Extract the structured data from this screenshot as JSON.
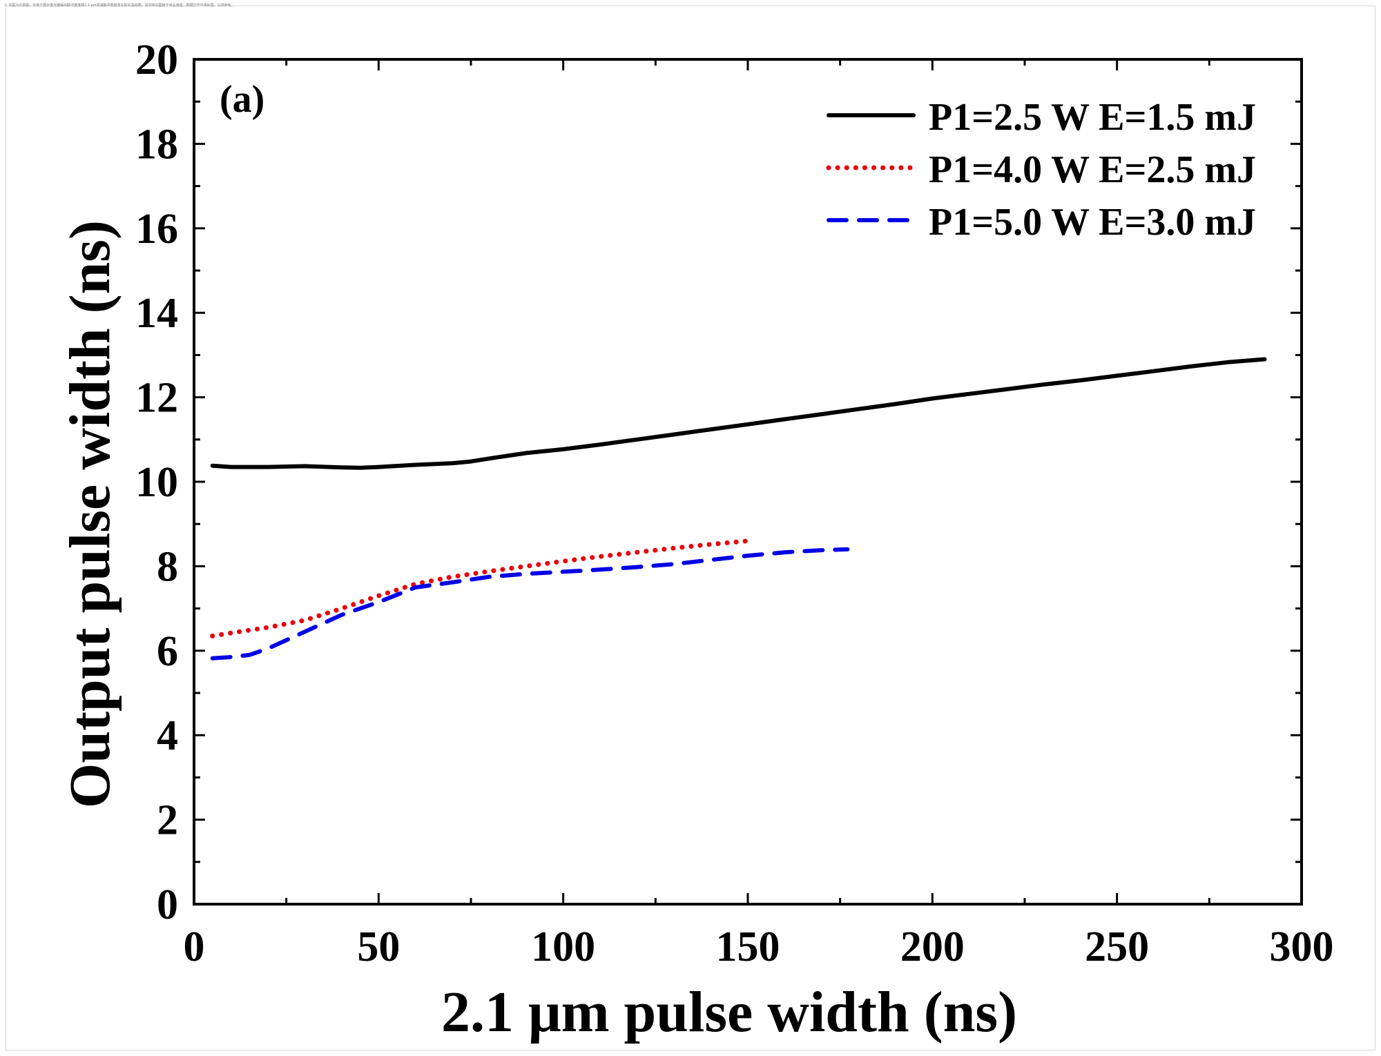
{
  "header_note": "① 本图为示意图，仅用于展示激光器输出脉冲宽度随2.1 μm泵浦脉冲宽度变化的实验结果。请勿将本图用于商业用途；数据已作平滑处理，以供参考。",
  "chart_data": {
    "type": "line",
    "panel_label": "(a)",
    "title": "",
    "xlabel": "2.1 μm pulse width (ns)",
    "ylabel": "Output pulse width (ns)",
    "xlim": [
      0,
      300
    ],
    "ylim": [
      0,
      20
    ],
    "x_ticks": [
      0,
      50,
      100,
      150,
      200,
      250,
      300
    ],
    "x_tick_labels": [
      "0",
      "50",
      "100",
      "150",
      "200",
      "250",
      "300"
    ],
    "y_ticks": [
      0,
      2,
      4,
      6,
      8,
      10,
      12,
      14,
      16,
      18,
      20
    ],
    "y_tick_labels": [
      "0",
      "2",
      "4",
      "6",
      "8",
      "10",
      "12",
      "14",
      "16",
      "18",
      "20"
    ],
    "grid": false,
    "legend_position": "top-right",
    "series": [
      {
        "name": "P1=2.5 W E=1.5 mJ",
        "color": "#000000",
        "style": "solid",
        "x": [
          5,
          10,
          20,
          30,
          40,
          45,
          50,
          60,
          70,
          75,
          80,
          90,
          100,
          110,
          120,
          130,
          140,
          150,
          160,
          170,
          180,
          190,
          200,
          210,
          220,
          230,
          240,
          250,
          260,
          270,
          280,
          290
        ],
        "y": [
          10.38,
          10.35,
          10.35,
          10.37,
          10.34,
          10.33,
          10.35,
          10.4,
          10.44,
          10.48,
          10.55,
          10.68,
          10.77,
          10.88,
          11.0,
          11.12,
          11.24,
          11.36,
          11.48,
          11.6,
          11.72,
          11.84,
          11.97,
          12.08,
          12.19,
          12.3,
          12.4,
          12.51,
          12.62,
          12.73,
          12.83,
          12.9
        ]
      },
      {
        "name": "P1=4.0 W E=2.5 mJ",
        "color": "#e8000b",
        "style": "dotted",
        "x": [
          5,
          10,
          20,
          30,
          40,
          50,
          60,
          70,
          80,
          90,
          100,
          110,
          120,
          130,
          140,
          150
        ],
        "y": [
          6.35,
          6.42,
          6.55,
          6.72,
          7.0,
          7.3,
          7.58,
          7.75,
          7.88,
          8.0,
          8.12,
          8.23,
          8.33,
          8.43,
          8.52,
          8.6
        ]
      },
      {
        "name": "P1=5.0 W E=3.0 mJ",
        "color": "#0000e6",
        "style": "dashed",
        "x": [
          5,
          10,
          15,
          20,
          25,
          30,
          40,
          50,
          60,
          70,
          80,
          90,
          100,
          110,
          120,
          130,
          140,
          150,
          160,
          170,
          177
        ],
        "y": [
          5.82,
          5.85,
          5.9,
          6.05,
          6.25,
          6.45,
          6.85,
          7.15,
          7.5,
          7.62,
          7.75,
          7.82,
          7.87,
          7.92,
          7.98,
          8.05,
          8.15,
          8.25,
          8.33,
          8.38,
          8.4
        ]
      }
    ]
  }
}
